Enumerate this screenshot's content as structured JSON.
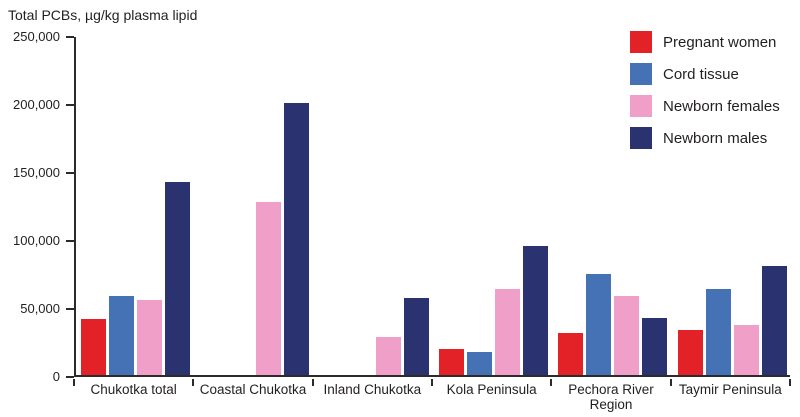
{
  "chart_data": {
    "type": "bar",
    "title": "Total PCBs, µg/kg plasma lipid",
    "xlabel": "",
    "ylabel": "µg/kg plasma lipid",
    "ylim": [
      0,
      250000
    ],
    "grid": false,
    "legend_position": "top-right",
    "yticks": [
      {
        "value": 0,
        "label": "0"
      },
      {
        "value": 50000,
        "label": "50,000"
      },
      {
        "value": 100000,
        "label": "100,000"
      },
      {
        "value": 150000,
        "label": "150,000"
      },
      {
        "value": 200000,
        "label": "200,000"
      },
      {
        "value": 250000,
        "label": "250,000"
      }
    ],
    "categories": [
      "Chukotka total",
      "Coastal Chukotka",
      "Inland Chukotka",
      "Kola Peninsula",
      "Pechora River Region",
      "Taymir Peninsula"
    ],
    "series": [
      {
        "name": "Pregnant women",
        "color": "#e32227",
        "values": [
          41000,
          0,
          0,
          19000,
          31000,
          33000
        ]
      },
      {
        "name": "Cord tissue",
        "color": "#4472b4",
        "values": [
          58000,
          0,
          0,
          17000,
          74000,
          63000
        ]
      },
      {
        "name": "Newborn females",
        "color": "#f0a0c8",
        "values": [
          55000,
          127000,
          28000,
          63000,
          58000,
          37000
        ]
      },
      {
        "name": "Newborn males",
        "color": "#2b3270",
        "values": [
          142000,
          200000,
          57000,
          95000,
          42000,
          80000
        ]
      }
    ]
  }
}
